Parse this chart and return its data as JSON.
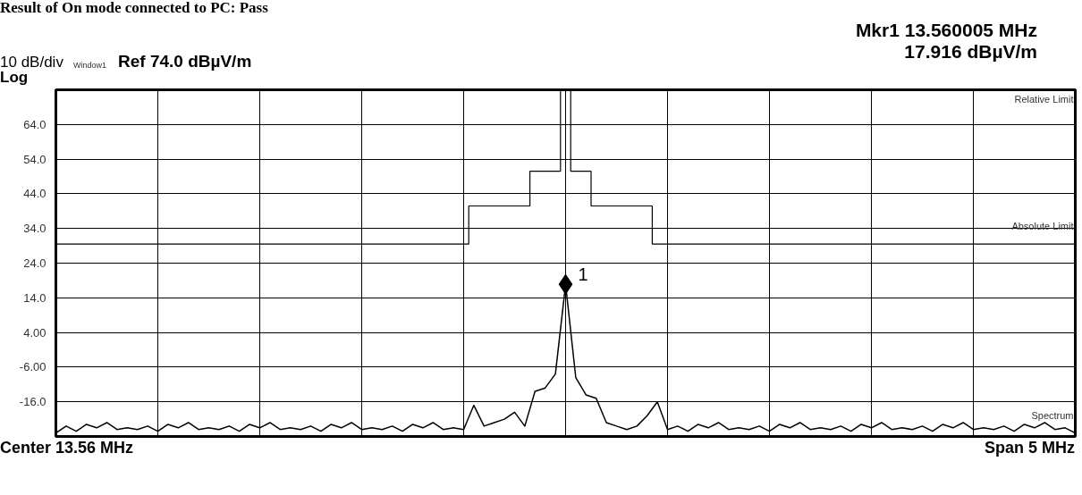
{
  "chart_data": {
    "type": "line",
    "title": "Result of On mode connected to PC: Pass",
    "categories": [
      null,
      null,
      null,
      null,
      null,
      null,
      null,
      null,
      null,
      null,
      null,
      null,
      null,
      null,
      null,
      null,
      null,
      null,
      null,
      null,
      null,
      null,
      null,
      null,
      null,
      null,
      null,
      null,
      null,
      null,
      null,
      null,
      null,
      null,
      null,
      null,
      null,
      null,
      null,
      null,
      null,
      null,
      null,
      null,
      null,
      null,
      null,
      null,
      null,
      null,
      null,
      null,
      null,
      null,
      null,
      null,
      null,
      null,
      null,
      null,
      null,
      null,
      null,
      null,
      null,
      null,
      null,
      null,
      null,
      null,
      null,
      null,
      null,
      null,
      null,
      null,
      null,
      null,
      null,
      null,
      null,
      null,
      null,
      null,
      null,
      null,
      null,
      null,
      null,
      null,
      null,
      null,
      null,
      null,
      null,
      null,
      null,
      null,
      null,
      null,
      null
    ],
    "ylim": [
      -26,
      74
    ],
    "yticks": [
      {
        "value": 64,
        "label": "64.0"
      },
      {
        "value": 54,
        "label": "54.0"
      },
      {
        "value": 44,
        "label": "44.0"
      },
      {
        "value": 34,
        "label": "34.0"
      },
      {
        "value": 24,
        "label": "24.0"
      },
      {
        "value": 14,
        "label": "14.0"
      },
      {
        "value": 4,
        "label": "4.00"
      },
      {
        "value": -6,
        "label": "-6.00"
      },
      {
        "value": -16,
        "label": "-16.0"
      }
    ],
    "grid": true,
    "series": [
      {
        "name": "Spectrum",
        "color": "#000000",
        "values": [
          -25,
          -23,
          -24.5,
          -22.5,
          -23.5,
          -22,
          -24,
          -23.5,
          -24,
          -23,
          -24.5,
          -22.5,
          -23.5,
          -22,
          -24,
          -23.5,
          -24,
          -23,
          -24.5,
          -22.5,
          -23.5,
          -22,
          -24,
          -23.5,
          -24,
          -23,
          -24.5,
          -22.5,
          -23.5,
          -22,
          -24,
          -23.5,
          -24,
          -23,
          -24.5,
          -22.5,
          -23.5,
          -22,
          -24,
          -23.5,
          -24,
          -17,
          -23,
          -22,
          -21,
          -19,
          -23,
          -13,
          -12,
          -8,
          17.9,
          -9,
          -14,
          -15,
          -22,
          -23,
          -24,
          -23,
          -20,
          -16,
          -24,
          -23,
          -24.5,
          -22.5,
          -23.5,
          -22,
          -24,
          -23.5,
          -24,
          -23,
          -24.5,
          -22.5,
          -23.5,
          -22,
          -24,
          -23.5,
          -24,
          -23,
          -24.5,
          -22.5,
          -23.5,
          -22,
          -24,
          -23.5,
          -24,
          -23,
          -24.5,
          -22.5,
          -23.5,
          -22,
          -24,
          -23.5,
          -24,
          -23,
          -24.5,
          -22.5,
          -23.5,
          -22,
          -24,
          -23.5,
          -25
        ]
      },
      {
        "name": "Absolute Limit",
        "type": "step",
        "color": "#000000",
        "values": [
          29.5,
          29.5,
          29.5,
          29.5,
          29.5,
          29.5,
          29.5,
          29.5,
          29.5,
          29.5,
          29.5,
          29.5,
          29.5,
          29.5,
          29.5,
          29.5,
          29.5,
          29.5,
          29.5,
          29.5,
          29.5,
          29.5,
          29.5,
          29.5,
          29.5,
          29.5,
          29.5,
          29.5,
          29.5,
          29.5,
          29.5,
          29.5,
          29.5,
          29.5,
          29.5,
          29.5,
          29.5,
          29.5,
          29.5,
          29.5,
          29.5,
          40.5,
          40.5,
          40.5,
          40.5,
          40.5,
          40.5,
          50.5,
          50.5,
          50.5,
          74,
          50.5,
          50.5,
          40.5,
          40.5,
          40.5,
          40.5,
          40.5,
          40.5,
          29.5,
          29.5,
          29.5,
          29.5,
          29.5,
          29.5,
          29.5,
          29.5,
          29.5,
          29.5,
          29.5,
          29.5,
          29.5,
          29.5,
          29.5,
          29.5,
          29.5,
          29.5,
          29.5,
          29.5,
          29.5,
          29.5,
          29.5,
          29.5,
          29.5,
          29.5,
          29.5,
          29.5,
          29.5,
          29.5,
          29.5,
          29.5,
          29.5,
          29.5,
          29.5,
          29.5,
          29.5,
          29.5,
          29.5,
          29.5,
          29.5,
          29.5
        ]
      },
      {
        "type": "scatter",
        "marker": "diamond",
        "color": "#000000",
        "values": [
          null,
          null,
          null,
          null,
          null,
          null,
          null,
          null,
          null,
          null,
          null,
          null,
          null,
          null,
          null,
          null,
          null,
          null,
          null,
          null,
          null,
          null,
          null,
          null,
          null,
          null,
          null,
          null,
          null,
          null,
          null,
          null,
          null,
          null,
          null,
          null,
          null,
          null,
          null,
          null,
          null,
          null,
          null,
          null,
          null,
          null,
          null,
          null,
          null,
          null,
          17.9,
          null,
          null,
          null,
          null,
          null,
          null,
          null,
          null,
          null,
          null,
          null,
          null,
          null,
          null,
          null,
          null,
          null,
          null,
          null,
          null,
          null,
          null,
          null,
          null,
          null,
          null,
          null,
          null,
          null,
          null,
          null,
          null,
          null,
          null,
          null,
          null,
          null,
          null,
          null,
          null,
          null,
          null,
          null,
          null,
          null,
          null,
          null,
          null,
          null,
          null
        ]
      }
    ],
    "annotations": [
      "10 dB/div",
      "Window1",
      "Ref 74.0 dBµV/m",
      "Log",
      "Mkr1  13.560005 MHz",
      "17.916 dBµV/m",
      "Relative Limit",
      "Center 13.56 MHz",
      "Span 5 MHz",
      "1"
    ]
  }
}
